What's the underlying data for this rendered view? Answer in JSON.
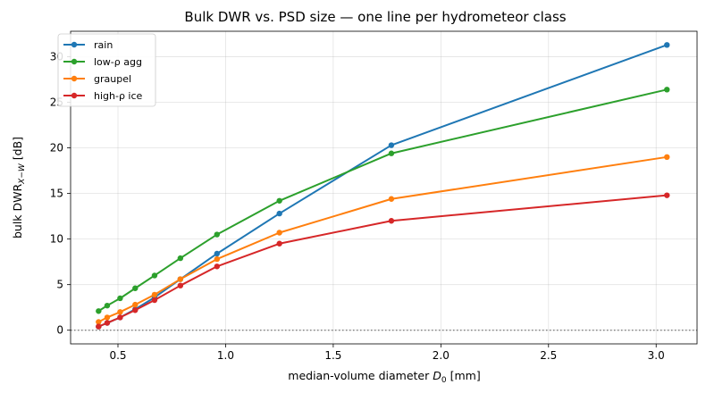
{
  "chart_data": {
    "type": "line",
    "title": "Bulk DWR vs. PSD size — one line per hydrometeor class",
    "xlabel": "median-volume diameter D0 [mm]",
    "xlabel_parts": {
      "main": "median-volume diameter ",
      "var": "D",
      "sub": "0",
      "unit": " [mm]"
    },
    "ylabel": "bulk DWR X−W [dB]",
    "ylabel_parts": {
      "main": "bulk DWR",
      "sub": "X−W",
      "unit": " [dB]"
    },
    "xlim": [
      0.28,
      3.19
    ],
    "ylim": [
      -1.5,
      32.8
    ],
    "xticks": [
      0.5,
      1.0,
      1.5,
      2.0,
      2.5,
      3.0
    ],
    "xtick_labels": [
      "0.5",
      "1.0",
      "1.5",
      "2.0",
      "2.5",
      "3.0"
    ],
    "yticks": [
      0,
      5,
      10,
      15,
      20,
      25,
      30
    ],
    "ytick_labels": [
      "0",
      "5",
      "10",
      "15",
      "20",
      "25",
      "30"
    ],
    "grid": true,
    "legend_position": "top-left",
    "reference_line": {
      "y": 0,
      "style": "dotted",
      "color": "#808080"
    },
    "x": [
      0.41,
      0.45,
      0.51,
      0.58,
      0.67,
      0.79,
      0.96,
      1.25,
      1.77,
      3.05
    ],
    "series": [
      {
        "name": "rain",
        "color": "#1f77b4",
        "values": [
          0.4,
          0.8,
          1.4,
          2.3,
          3.6,
          5.6,
          8.4,
          12.8,
          20.3,
          31.3
        ]
      },
      {
        "name": "low-ρ agg",
        "color": "#2ca02c",
        "values": [
          2.1,
          2.7,
          3.5,
          4.6,
          6.0,
          7.9,
          10.5,
          14.2,
          19.4,
          26.4
        ]
      },
      {
        "name": "graupel",
        "color": "#ff7f0e",
        "values": [
          0.9,
          1.4,
          2.0,
          2.8,
          3.9,
          5.6,
          7.8,
          10.7,
          14.4,
          19.0
        ]
      },
      {
        "name": "high-ρ ice",
        "color": "#d62728",
        "values": [
          0.4,
          0.8,
          1.4,
          2.2,
          3.3,
          4.9,
          7.0,
          9.5,
          12.0,
          14.8
        ]
      }
    ]
  }
}
